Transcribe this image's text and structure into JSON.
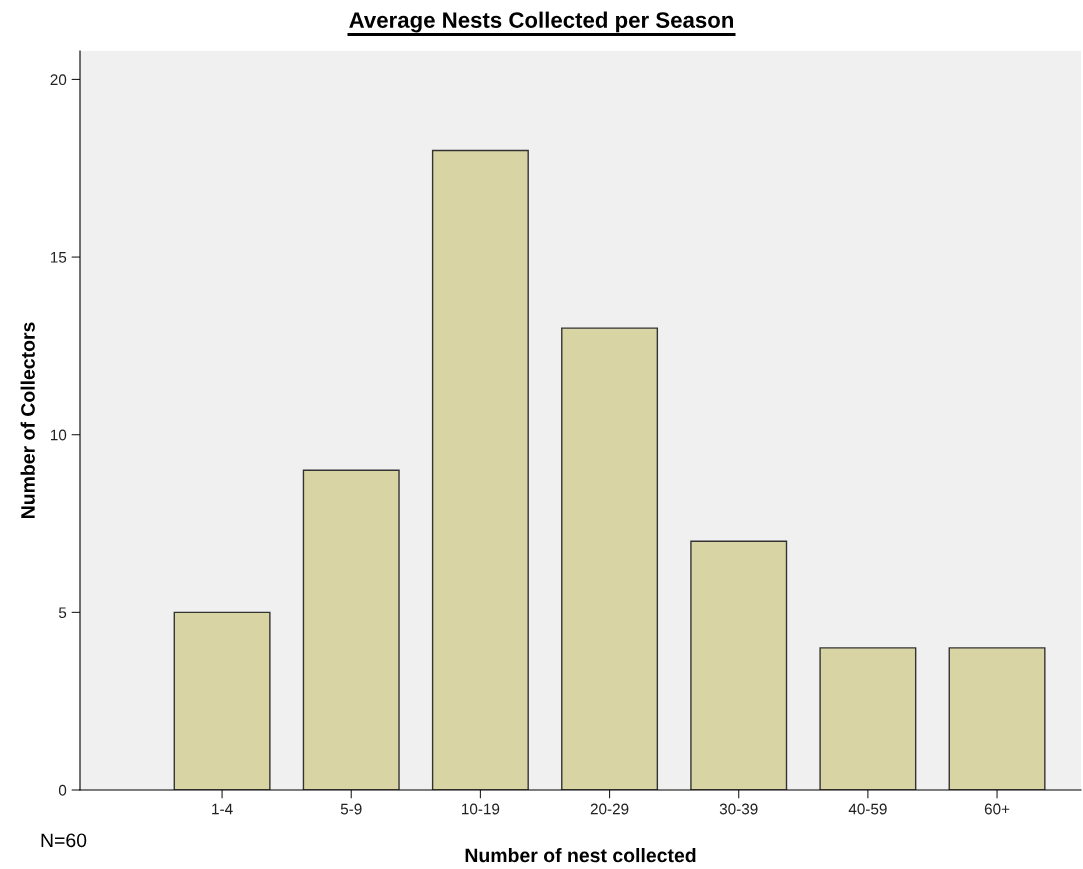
{
  "chart_data": {
    "type": "bar",
    "title": "Average Nests Collected per Season",
    "xlabel": "Number of nest collected",
    "ylabel": "Number of Collectors",
    "categories": [
      "1-4",
      "5-9",
      "10-19",
      "20-29",
      "30-39",
      "40-59",
      "60+"
    ],
    "values": [
      5,
      9,
      18,
      13,
      7,
      4,
      4
    ],
    "color": "#d8d4a4",
    "ylim": [
      0,
      20.8
    ],
    "yticks": [
      0,
      5,
      10,
      15,
      20
    ],
    "grid": false,
    "legend": false,
    "annotations": [
      "N=60"
    ]
  }
}
